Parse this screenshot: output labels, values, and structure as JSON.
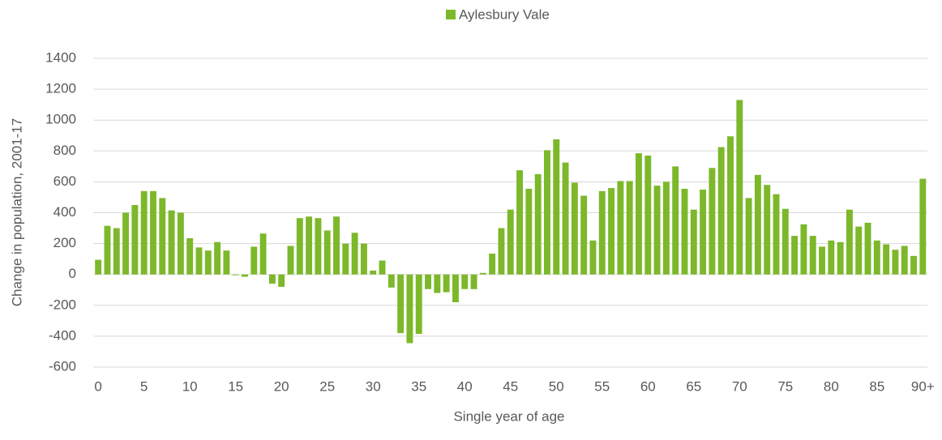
{
  "chart_data": {
    "type": "bar",
    "x_label": "Single year of age",
    "y_label": "Change in population, 2001-17",
    "categories": [
      "0",
      null,
      null,
      null,
      null,
      "5",
      null,
      null,
      null,
      null,
      "10",
      null,
      null,
      null,
      null,
      "15",
      null,
      null,
      null,
      null,
      "20",
      null,
      null,
      null,
      null,
      "25",
      null,
      null,
      null,
      null,
      "30",
      null,
      null,
      null,
      null,
      "35",
      null,
      null,
      null,
      null,
      "40",
      null,
      null,
      null,
      null,
      "45",
      null,
      null,
      null,
      null,
      "50",
      null,
      null,
      null,
      null,
      "55",
      null,
      null,
      null,
      null,
      "60",
      null,
      null,
      null,
      null,
      "65",
      null,
      null,
      null,
      null,
      "70",
      null,
      null,
      null,
      null,
      "75",
      null,
      null,
      null,
      null,
      "80",
      null,
      null,
      null,
      null,
      "85",
      null,
      null,
      null,
      null,
      "90+"
    ],
    "series": [
      {
        "name": "Aylesbury Vale",
        "color": "#7cb82a",
        "values": [
          95,
          315,
          300,
          400,
          450,
          540,
          540,
          495,
          415,
          400,
          235,
          175,
          155,
          210,
          155,
          -5,
          -15,
          180,
          265,
          -60,
          -80,
          185,
          365,
          375,
          365,
          285,
          375,
          200,
          270,
          200,
          25,
          90,
          -85,
          -380,
          -445,
          -385,
          -95,
          -120,
          -115,
          -180,
          -95,
          -95,
          10,
          135,
          300,
          420,
          675,
          555,
          650,
          805,
          875,
          725,
          595,
          510,
          220,
          540,
          560,
          605,
          605,
          785,
          770,
          575,
          600,
          700,
          555,
          420,
          550,
          690,
          825,
          895,
          1130,
          495,
          645,
          580,
          520,
          425,
          250,
          325,
          250,
          180,
          220,
          210,
          420,
          310,
          335,
          220,
          195,
          160,
          185,
          120,
          620
        ]
      }
    ],
    "ylim": [
      -600,
      1400
    ],
    "yticks": [
      -600,
      -400,
      -200,
      0,
      200,
      400,
      600,
      800,
      1000,
      1200,
      1400
    ],
    "grid": true,
    "legend": "top"
  }
}
